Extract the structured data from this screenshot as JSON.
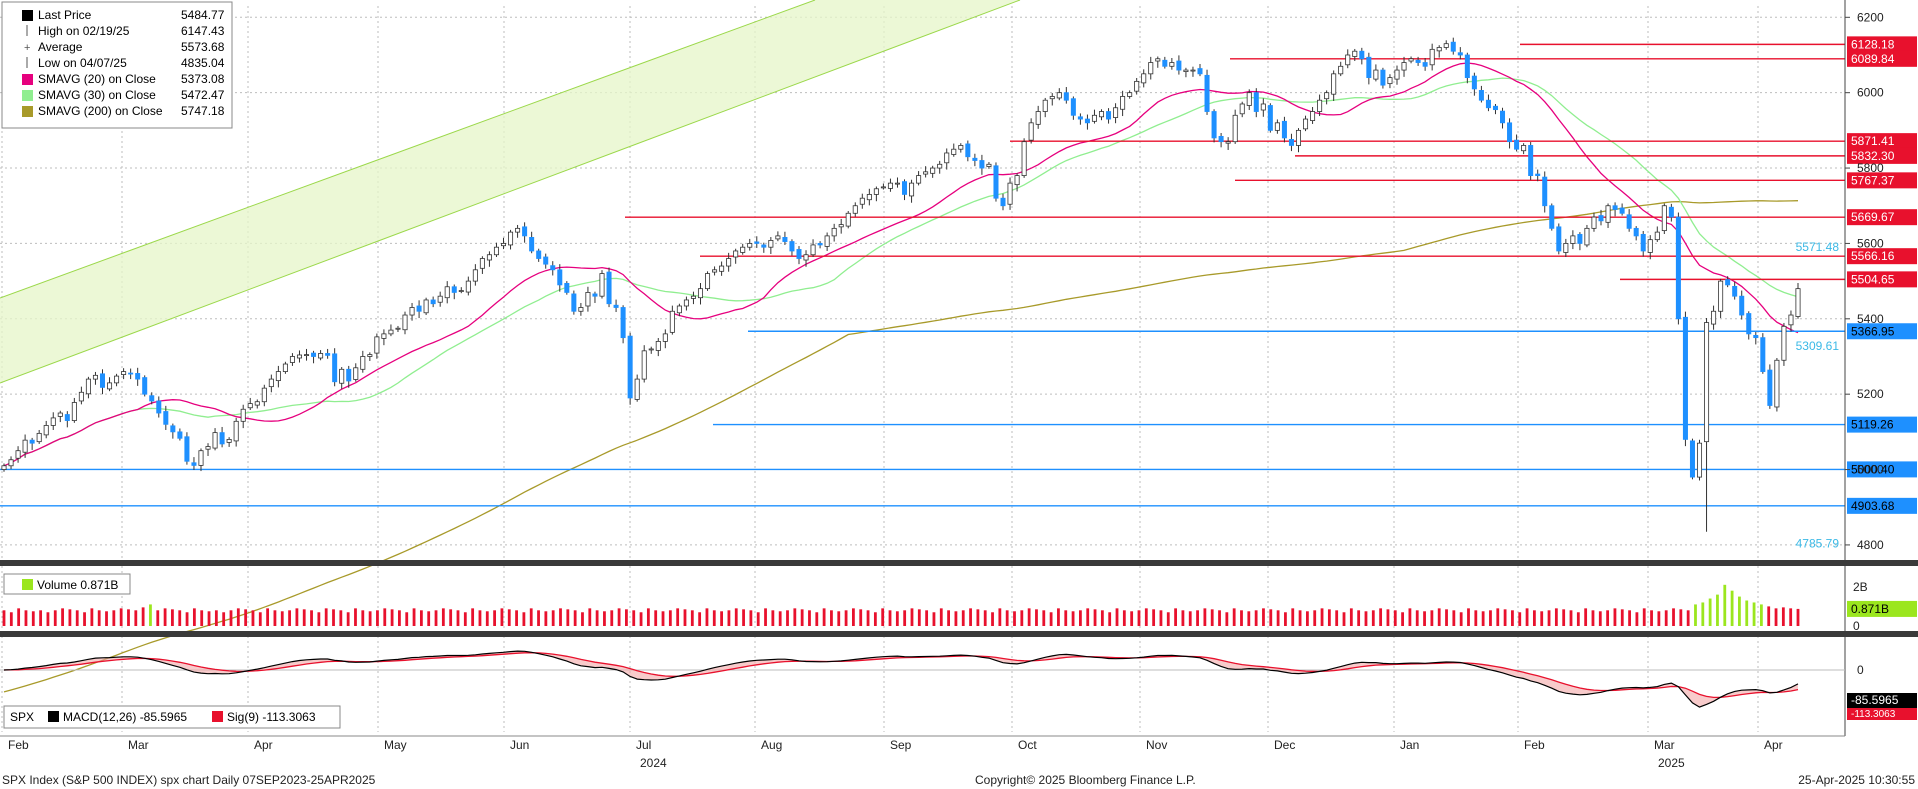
{
  "chart_data": {
    "type": "candlestick",
    "title": "",
    "price_panel": {
      "ylim": [
        4760,
        6230
      ],
      "y_ticks": [
        4800,
        5000,
        5200,
        5400,
        5600,
        5800,
        6000,
        6200
      ],
      "grid": true,
      "legend": {
        "placement": "top-left",
        "items": [
          {
            "name": "Last Price",
            "value": "5484.77",
            "color": "#000000",
            "marker": "square"
          },
          {
            "name": "High on 02/19/25",
            "value": "6147.43",
            "color": "#555555",
            "marker": "tick"
          },
          {
            "name": "Average",
            "value": "5573.68",
            "color": "#555555",
            "marker": "plus"
          },
          {
            "name": "Low on 04/07/25",
            "value": "4835.04",
            "color": "#555555",
            "marker": "tick"
          },
          {
            "name": "SMAVG (20)  on Close",
            "value": "5373.08",
            "color": "#e6007e",
            "marker": "square"
          },
          {
            "name": "SMAVG (30)  on Close",
            "value": "5472.47",
            "color": "#90ee90",
            "marker": "square"
          },
          {
            "name": "SMAVG (200)  on Close",
            "value": "5747.18",
            "color": "#a89a2a",
            "marker": "square"
          }
        ]
      },
      "series": [
        {
          "name": "Last Price",
          "kind": "ohlc",
          "up_color": "#ffffff",
          "down_color": "#1e90ff",
          "closes": [
            5010,
            5026,
            5050,
            5078,
            5070,
            5096,
            5117,
            5137,
            5150,
            5130,
            5178,
            5205,
            5240,
            5250,
            5218,
            5230,
            5248,
            5260,
            5255,
            5240,
            5200,
            5182,
            5150,
            5120,
            5100,
            5083,
            5022,
            5011,
            5050,
            5061,
            5098,
            5068,
            5080,
            5128,
            5160,
            5175,
            5180,
            5216,
            5240,
            5260,
            5280,
            5300,
            5304,
            5305,
            5300,
            5308,
            5303,
            5233,
            5266,
            5235,
            5270,
            5300,
            5305,
            5352,
            5360,
            5370,
            5375,
            5410,
            5430,
            5420,
            5450,
            5440,
            5460,
            5485,
            5470,
            5475,
            5500,
            5530,
            5560,
            5570,
            5590,
            5600,
            5630,
            5640,
            5620,
            5580,
            5560,
            5545,
            5530,
            5490,
            5470,
            5420,
            5430,
            5470,
            5460,
            5520,
            5440,
            5430,
            5350,
            5190,
            5240,
            5315,
            5320,
            5340,
            5360,
            5420,
            5434,
            5450,
            5460,
            5480,
            5520,
            5530,
            5540,
            5560,
            5580,
            5590,
            5600,
            5600,
            5590,
            5608,
            5620,
            5605,
            5580,
            5560,
            5570,
            5596,
            5596,
            5620,
            5640,
            5650,
            5680,
            5700,
            5720,
            5730,
            5745,
            5750,
            5760,
            5760,
            5730,
            5760,
            5780,
            5790,
            5800,
            5810,
            5840,
            5850,
            5860,
            5830,
            5820,
            5800,
            5810,
            5720,
            5700,
            5760,
            5780,
            5870,
            5920,
            5950,
            5980,
            5990,
            6000,
            5980,
            5940,
            5930,
            5920,
            5940,
            5950,
            5930,
            5960,
            5990,
            6000,
            6030,
            6050,
            6080,
            6090,
            6070,
            6080,
            6060,
            6060,
            6060,
            6050,
            5950,
            5880,
            5870,
            5870,
            5940,
            5970,
            6000,
            5950,
            5970,
            5900,
            5920,
            5880,
            5860,
            5900,
            5930,
            5950,
            5980,
            6000,
            6050,
            6070,
            6100,
            6110,
            6090,
            6040,
            6060,
            6020,
            6040,
            6060,
            6080,
            6090,
            6080,
            6070,
            6115,
            6120,
            6130,
            6110,
            6100,
            6040,
            6010,
            5980,
            5960,
            5955,
            5920,
            5870,
            5850,
            5860,
            5780,
            5780,
            5700,
            5640,
            5580,
            5600,
            5620,
            5600,
            5640,
            5670,
            5660,
            5700,
            5690,
            5680,
            5640,
            5620,
            5580,
            5610,
            5630,
            5700,
            5670,
            5400,
            5080,
            4980,
            5070,
            5390,
            5420,
            5500,
            5490,
            5460,
            5410,
            5360,
            5350,
            5260,
            5170,
            5290,
            5380,
            5410,
            5480
          ],
          "wick_low": 4835.04,
          "wick_high": 6147.43
        },
        {
          "name": "SMAVG (20)  on Close",
          "value": 5373.08,
          "color": "#e6007e"
        },
        {
          "name": "SMAVG (30)  on Close",
          "value": 5472.47,
          "color": "#90ee90"
        },
        {
          "name": "SMAVG (200)  on Close",
          "value": 5747.18,
          "color": "#a89a2a"
        }
      ],
      "levels": [
        {
          "value": 6128.18,
          "label": "6128.18",
          "color": "#e8112d",
          "box": true
        },
        {
          "value": 6089.84,
          "label": "6089.84",
          "color": "#e8112d",
          "box": true
        },
        {
          "value": 5871.41,
          "label": "5871.41",
          "color": "#e8112d",
          "box": true
        },
        {
          "value": 5832.3,
          "label": "5832.30",
          "color": "#e8112d",
          "box": true
        },
        {
          "value": 5767.37,
          "label": "5767.37",
          "color": "#e8112d",
          "box": true
        },
        {
          "value": 5669.67,
          "label": "5669.67",
          "color": "#e8112d",
          "box": true
        },
        {
          "value": 5566.16,
          "label": "5566.16",
          "color": "#e8112d",
          "box": true
        },
        {
          "value": 5504.65,
          "label": "5504.65",
          "color": "#e8112d",
          "box": true
        },
        {
          "value": 5366.95,
          "label": "5366.95",
          "color": "#1e90ff",
          "box": true
        },
        {
          "value": 5119.26,
          "label": "5119.26",
          "color": "#1e90ff",
          "box": true
        },
        {
          "value": 5000.4,
          "label": "5000.40",
          "color": "#1e90ff",
          "box": true
        },
        {
          "value": 4903.68,
          "label": "4903.68",
          "color": "#1e90ff",
          "box": true
        }
      ],
      "annotations": [
        {
          "value": 5571.48,
          "label": "5571.48",
          "color": "#3bb9e6"
        },
        {
          "value": 5309.61,
          "label": "5309.61",
          "color": "#3bb9e6"
        },
        {
          "value": 4785.79,
          "label": "4785.79",
          "color": "#3bb9e6"
        }
      ]
    },
    "volume_panel": {
      "legend": "Volume  0.871B",
      "y_ticks": [
        "2B",
        "0"
      ],
      "last_value_label": "0.871B",
      "colors": {
        "up": "#9be61e",
        "down": "#e8112d"
      },
      "values": [
        0.8,
        0.7,
        0.9,
        0.8,
        0.75,
        0.8,
        0.7,
        0.8,
        0.9,
        0.85,
        0.8,
        0.7,
        0.9,
        0.8,
        0.75,
        0.8,
        0.9,
        0.85,
        0.8,
        0.95,
        1.1,
        0.8,
        0.9,
        0.85,
        0.8,
        0.7,
        0.9,
        0.8,
        0.75,
        0.8,
        0.7,
        0.8,
        0.9,
        0.85,
        0.8,
        0.7,
        0.9,
        0.8,
        0.75,
        0.8,
        0.9,
        0.85,
        0.8,
        0.7,
        0.9,
        0.85,
        0.8,
        0.7,
        0.9,
        0.8,
        0.75,
        0.8,
        0.9,
        0.85,
        0.8,
        0.7,
        0.9,
        0.8,
        0.75,
        0.8,
        0.9,
        0.85,
        0.8,
        0.7,
        0.9,
        0.8,
        0.75,
        0.8,
        0.9,
        0.85,
        0.8,
        0.7,
        0.9,
        0.8,
        0.75,
        0.8,
        0.9,
        0.85,
        0.8,
        0.7,
        0.9,
        0.8,
        0.75,
        0.8,
        0.9,
        0.85,
        0.8,
        0.7,
        0.9,
        0.8,
        0.75,
        0.8,
        0.9,
        0.85,
        0.8,
        0.7,
        0.9,
        0.8,
        0.75,
        0.8,
        0.9,
        0.85,
        0.8,
        0.7,
        0.9,
        0.8,
        0.75,
        0.8,
        0.9,
        0.85,
        0.8,
        0.7,
        0.9,
        0.8,
        0.75,
        0.8,
        0.9,
        0.85,
        0.8,
        0.7,
        0.9,
        0.8,
        0.75,
        0.8,
        0.9,
        0.85,
        0.8,
        0.7,
        0.9,
        0.8,
        0.75,
        0.8,
        0.9,
        0.85,
        0.8,
        0.7,
        0.9,
        0.8,
        0.75,
        0.8,
        0.9,
        0.85,
        0.8,
        0.7,
        0.9,
        0.8,
        0.75,
        0.8,
        0.9,
        0.85,
        0.8,
        0.7,
        0.9,
        0.8,
        0.75,
        0.8,
        0.9,
        0.85,
        0.8,
        0.7,
        0.9,
        0.8,
        0.75,
        0.8,
        0.9,
        0.85,
        0.8,
        0.7,
        0.9,
        0.8,
        0.75,
        0.8,
        0.9,
        0.85,
        0.8,
        0.7,
        0.9,
        0.8,
        0.75,
        0.8,
        0.9,
        0.85,
        0.8,
        0.7,
        0.9,
        0.8,
        0.75,
        0.8,
        0.9,
        0.85,
        0.8,
        0.7,
        0.9,
        0.8,
        0.75,
        0.8,
        0.9,
        0.85,
        0.8,
        0.7,
        0.9,
        0.8,
        0.75,
        0.8,
        0.9,
        0.85,
        0.8,
        0.7,
        0.9,
        0.8,
        0.75,
        0.8,
        0.9,
        0.85,
        0.8,
        0.7,
        0.9,
        0.8,
        0.75,
        0.8,
        0.9,
        0.85,
        0.8,
        0.7,
        0.9,
        0.8,
        0.75,
        0.8,
        0.9,
        0.85,
        0.8,
        1.1,
        1.2,
        1.4,
        1.6,
        2.1,
        1.8,
        1.5,
        1.3,
        1.2,
        1.1,
        1.0,
        0.9,
        0.95,
        0.9,
        0.871
      ]
    },
    "macd_panel": {
      "legend_prefix": "SPX",
      "items": [
        {
          "name": "MACD(12,26)",
          "value": "-85.5965",
          "color": "#000000",
          "box": "#ffffff"
        },
        {
          "name": "Sig(9)",
          "value": "-113.3063",
          "color": "#e8112d",
          "box": "#e8112d"
        }
      ],
      "y_ticks": [
        "0"
      ],
      "last_macd_label": "-85.5965",
      "last_sig_label": "-113.3063"
    },
    "x_axis": {
      "month_labels": [
        "Feb",
        "Mar",
        "Apr",
        "May",
        "Jun",
        "Jul",
        "Aug",
        "Sep",
        "Oct",
        "Nov",
        "Dec",
        "Jan",
        "Feb",
        "Mar",
        "Apr"
      ],
      "year_labels": [
        {
          "text": "2024",
          "under": "Jul"
        },
        {
          "text": "2025",
          "under": "Mar"
        }
      ]
    },
    "footer": {
      "left": "SPX Index (S&P 500 INDEX) spx chart  Daily 07SEP2023-25APR2025",
      "center": "Copyright© 2025 Bloomberg Finance L.P.",
      "right": "25-Apr-2025 10:30:55"
    }
  }
}
